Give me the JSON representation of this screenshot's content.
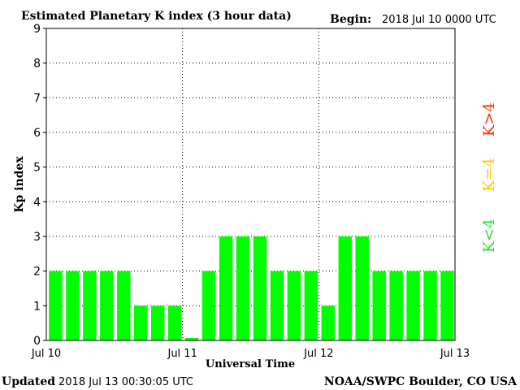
{
  "chart_data": {
    "type": "bar",
    "title": "Estimated Planetary K index (3 hour data)",
    "begin_label": "Begin:",
    "begin_value": "2018 Jul 10 0000 UTC",
    "xlabel": "Universal Time",
    "ylabel": "Kp index",
    "ylim": [
      0,
      9
    ],
    "y_ticks": [
      "0",
      "1",
      "2",
      "3",
      "4",
      "5",
      "6",
      "7",
      "8",
      "9"
    ],
    "x_ticks": [
      "Jul 10",
      "Jul 11",
      "Jul 12",
      "Jul 13"
    ],
    "grid": true,
    "values": [
      2,
      2,
      2,
      2,
      2,
      1,
      1,
      1,
      0.07,
      2,
      3,
      3,
      3,
      2,
      2,
      2,
      1,
      3,
      3,
      2,
      2,
      2,
      2,
      2
    ],
    "bar_color": "#00ff00",
    "legend": [
      {
        "label": "K<4",
        "color": "#33dd33"
      },
      {
        "label": "K=4",
        "color": "#ffcc00"
      },
      {
        "label": "K>4",
        "color": "#ff3300"
      }
    ],
    "updated_label": "Updated",
    "updated_value": "2018 Jul 13 00:30:05 UTC",
    "source": "NOAA/SWPC Boulder, CO USA"
  }
}
